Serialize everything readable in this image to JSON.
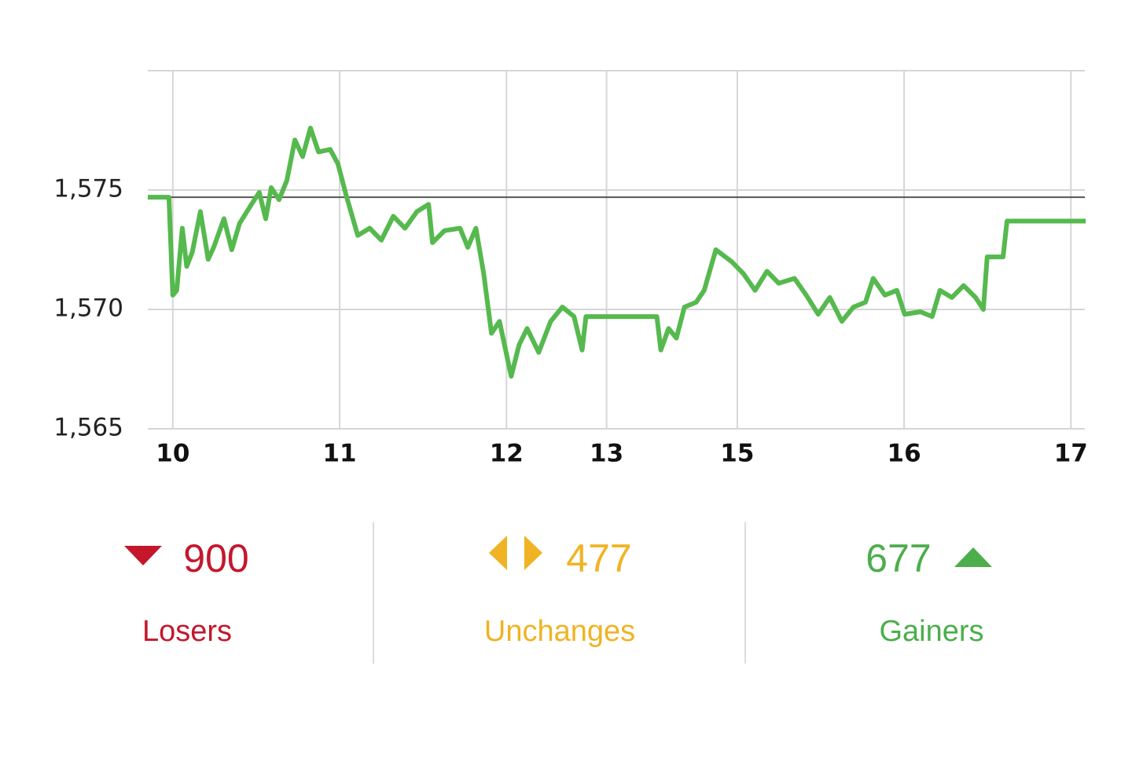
{
  "chart_data": {
    "type": "line",
    "x": [
      -9,
      -1.4,
      0,
      1.4,
      3.4,
      5,
      7,
      9.9,
      12.7,
      14.7,
      18.4,
      21.2,
      24,
      28.3,
      31.1,
      33.4,
      35.4,
      38.2,
      41,
      43.9,
      46.7,
      49.5,
      52.4,
      56.6,
      59.4,
      62.3,
      66.5,
      70.8,
      75,
      79.3,
      83.5,
      87.8,
      92,
      93.4,
      97.7,
      103.3,
      106.1,
      109,
      111.8,
      114.6,
      117.5,
      121.7,
      124.5,
      127.4,
      131.6,
      135.9,
      140.1,
      144.3,
      147.2,
      148.6,
      174.1,
      175.5,
      178.3,
      181.1,
      184,
      188.2,
      191.1,
      195.3,
      201,
      205.2,
      209.4,
      213.7,
      217.9,
      223.6,
      227.8,
      232.1,
      236.3,
      240.6,
      244.8,
      249.1,
      251.9,
      256.1,
      260.4,
      263.2,
      268.9,
      273.1,
      275.9,
      280.2,
      284.4,
      288.7,
      291.5,
      292.9,
      298.6,
      300,
      328.3
    ],
    "series": [
      {
        "color": "#56b94e",
        "values": [
          1574.7,
          1574.7,
          1570.6,
          1570.8,
          1573.4,
          1571.8,
          1572.4,
          1574.1,
          1572.1,
          1572.6,
          1573.8,
          1572.5,
          1573.6,
          1574.4,
          1574.9,
          1573.8,
          1575.1,
          1574.6,
          1575.4,
          1577.1,
          1576.4,
          1577.6,
          1576.6,
          1576.7,
          1576.1,
          1574.8,
          1573.1,
          1573.4,
          1572.9,
          1573.9,
          1573.4,
          1574.1,
          1574.4,
          1572.8,
          1573.3,
          1573.4,
          1572.6,
          1573.4,
          1571.5,
          1569,
          1569.5,
          1567.2,
          1568.5,
          1569.2,
          1568.2,
          1569.5,
          1570.1,
          1569.7,
          1568.3,
          1569.7,
          1569.7,
          1568.3,
          1569.2,
          1568.8,
          1570.1,
          1570.3,
          1570.8,
          1572.5,
          1572,
          1571.5,
          1570.8,
          1571.6,
          1571.1,
          1571.3,
          1570.6,
          1569.8,
          1570.5,
          1569.5,
          1570.1,
          1570.3,
          1571.3,
          1570.6,
          1570.8,
          1569.8,
          1569.9,
          1569.7,
          1570.8,
          1570.5,
          1571,
          1570.5,
          1570,
          1572.2,
          1572.2,
          1573.7,
          1573.7
        ]
      }
    ],
    "reference_line": 1574.7,
    "xlim": [
      -9,
      328
    ],
    "xticks": [
      {
        "value": 0,
        "label": "10"
      },
      {
        "value": 60,
        "label": "11"
      },
      {
        "value": 120,
        "label": "12"
      },
      {
        "value": 156,
        "label": "13"
      },
      {
        "value": 203,
        "label": "15"
      },
      {
        "value": 263,
        "label": "16"
      },
      {
        "value": 323,
        "label": "17"
      }
    ],
    "ylim": [
      1565,
      1580
    ],
    "yticks": [
      {
        "value": 1565,
        "label": "1,565"
      },
      {
        "value": 1570,
        "label": "1,570"
      },
      {
        "value": 1575,
        "label": "1,575"
      }
    ],
    "grid": true
  },
  "summary": [
    {
      "value": 900,
      "label": "Losers",
      "color": "#c4172c"
    },
    {
      "value": 477,
      "label": "Unchanges",
      "color": "#f0b323"
    },
    {
      "value": 677,
      "label": "Gainers",
      "color": "#4cae4c"
    }
  ]
}
